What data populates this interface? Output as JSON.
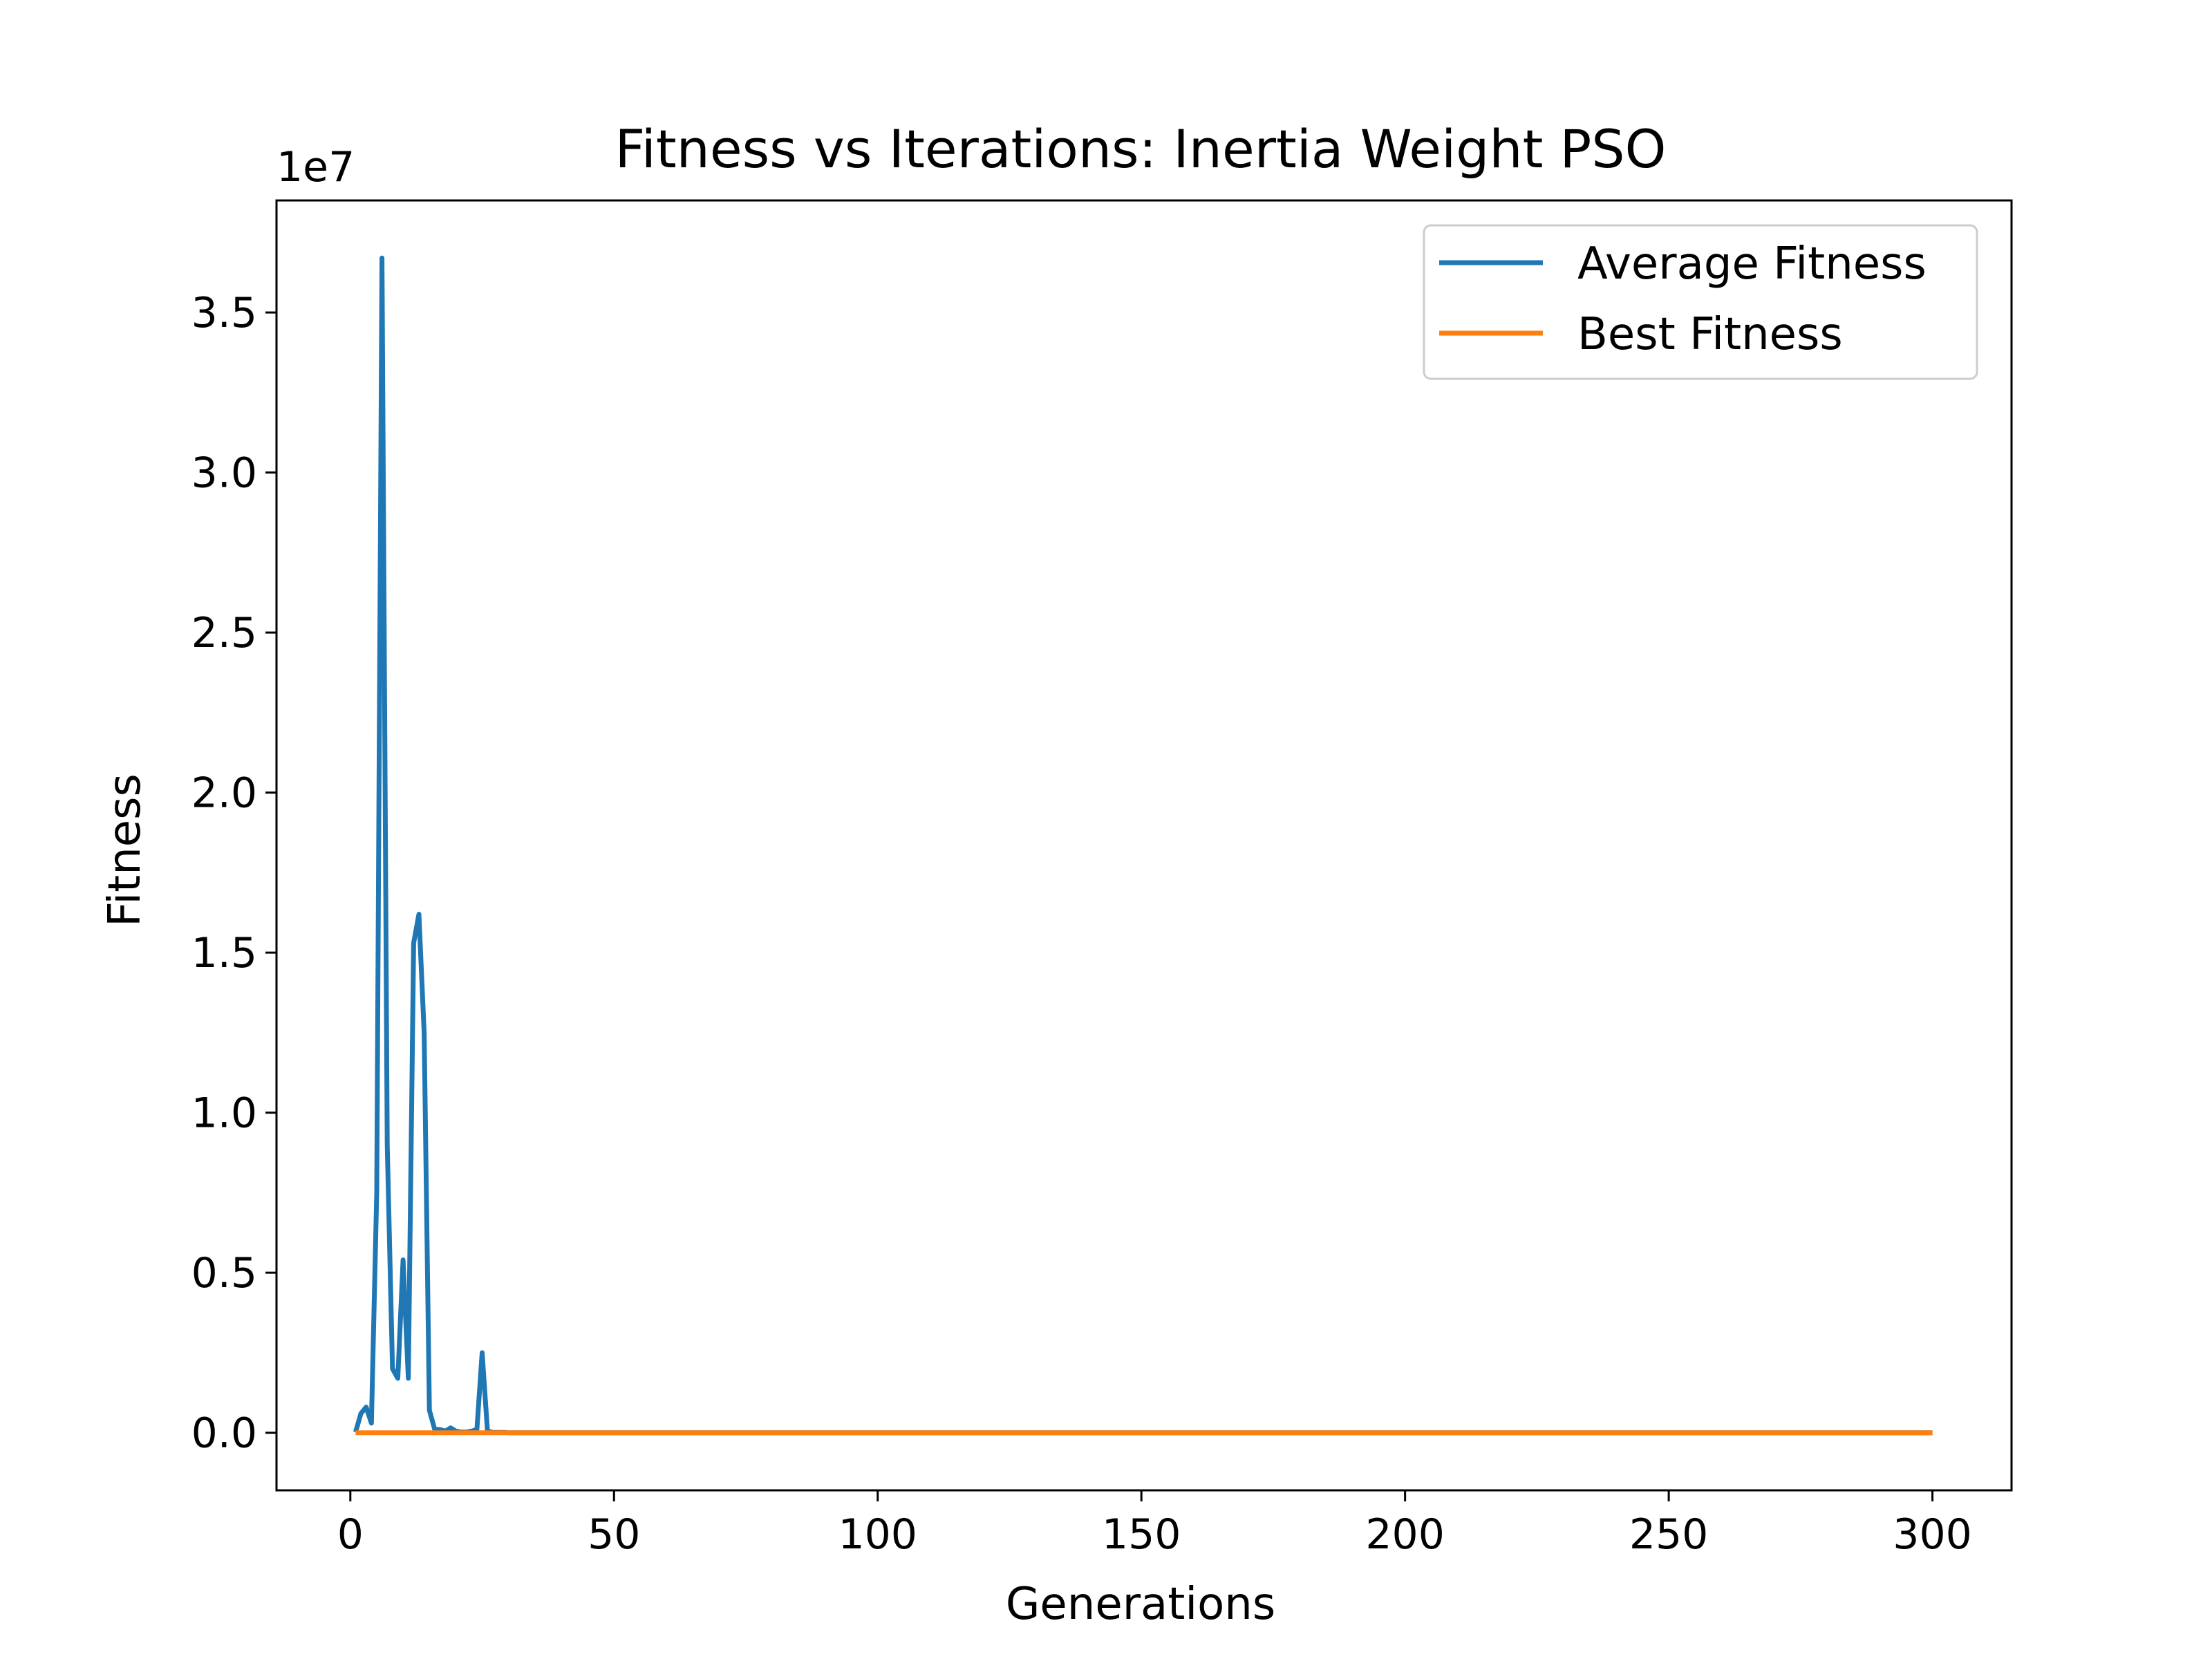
{
  "chart_data": {
    "type": "line",
    "title": "Fitness vs Iterations: Inertia Weight PSO",
    "xlabel": "Generations",
    "ylabel": "Fitness",
    "y_offset_label": "1e7",
    "xlim": [
      -14,
      315
    ],
    "ylim": [
      -1.8,
      38.5
    ],
    "y_unit_note": "y values in units of 1e7 as printed by the offset label",
    "xticks": [
      0,
      50,
      100,
      150,
      200,
      250,
      300
    ],
    "xtick_labels": [
      "0",
      "50",
      "100",
      "150",
      "200",
      "250",
      "300"
    ],
    "yticks": [
      0,
      5,
      10,
      15,
      20,
      25,
      30,
      35
    ],
    "ytick_labels": [
      "0.0",
      "0.5",
      "1.0",
      "1.5",
      "2.0",
      "2.5",
      "3.0",
      "3.5"
    ],
    "legend_position": "top-right",
    "grid": false,
    "series": [
      {
        "name": "Average Fitness",
        "color": "#1f77b4",
        "x": [
          1,
          2,
          3,
          4,
          5,
          6,
          7,
          8,
          9,
          10,
          11,
          12,
          13,
          14,
          15,
          16,
          17,
          18,
          19,
          20,
          21,
          22,
          23,
          24,
          25,
          26,
          27,
          28,
          29,
          30,
          300
        ],
        "y": [
          0.02,
          0.6,
          0.8,
          0.3,
          7.5,
          36.7,
          9.0,
          2.0,
          1.7,
          5.4,
          1.7,
          15.3,
          16.2,
          12.5,
          0.7,
          0.1,
          0.1,
          0.05,
          0.15,
          0.05,
          0.02,
          0.02,
          0.05,
          0.1,
          2.5,
          0.05,
          0.01,
          0.01,
          0.01,
          0.0,
          0.0
        ]
      },
      {
        "name": "Best Fitness",
        "color": "#ff7f0e",
        "x": [
          1,
          300
        ],
        "y": [
          0.0,
          0.0
        ]
      }
    ]
  }
}
